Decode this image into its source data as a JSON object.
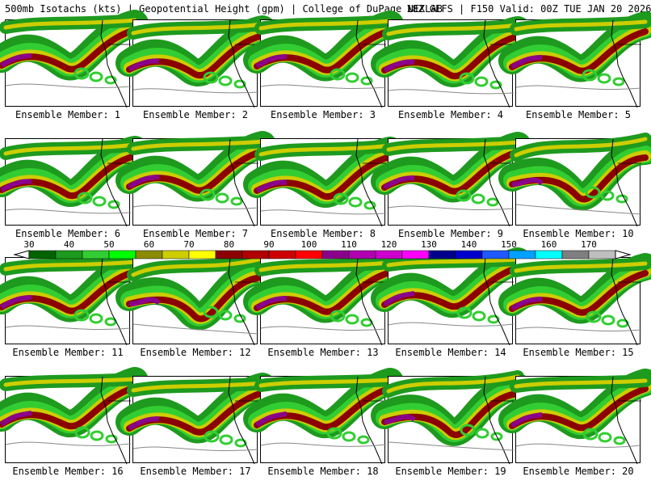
{
  "header": {
    "title_left": "500mb Isotachs (kts) | Geopotential Height (gpm) | College of DuPage NEXLAB",
    "title_right": "18Z GEFS | F150 Valid: 00Z TUE JAN 20 2026"
  },
  "members": [
    {
      "label": "Ensemble Member: 1"
    },
    {
      "label": "Ensemble Member: 2"
    },
    {
      "label": "Ensemble Member: 3"
    },
    {
      "label": "Ensemble Member: 4"
    },
    {
      "label": "Ensemble Member: 5"
    },
    {
      "label": "Ensemble Member: 6"
    },
    {
      "label": "Ensemble Member: 7"
    },
    {
      "label": "Ensemble Member: 8"
    },
    {
      "label": "Ensemble Member: 9"
    },
    {
      "label": "Ensemble Member: 10"
    },
    {
      "label": "Ensemble Member: 11"
    },
    {
      "label": "Ensemble Member: 12"
    },
    {
      "label": "Ensemble Member: 13"
    },
    {
      "label": "Ensemble Member: 14"
    },
    {
      "label": "Ensemble Member: 15"
    },
    {
      "label": "Ensemble Member: 16"
    },
    {
      "label": "Ensemble Member: 17"
    },
    {
      "label": "Ensemble Member: 18"
    },
    {
      "label": "Ensemble Member: 19"
    },
    {
      "label": "Ensemble Member: 20"
    }
  ],
  "colorbar": {
    "ticks": [
      "30",
      "40",
      "50",
      "60",
      "70",
      "80",
      "90",
      "100",
      "110",
      "120",
      "130",
      "140",
      "150",
      "160",
      "170"
    ],
    "colors": [
      "#006400",
      "#1e9a1e",
      "#32cd32",
      "#00ff00",
      "#8b8b00",
      "#cdcd00",
      "#ffff00",
      "#8b0000",
      "#b00000",
      "#cd0000",
      "#ff0000",
      "#8b008b",
      "#b000b0",
      "#cd00cd",
      "#ff00ff",
      "#00008b",
      "#0000cd",
      "#1e5aff",
      "#00a0ff",
      "#00ffff",
      "#7f7f7f",
      "#bfbfbf"
    ]
  }
}
